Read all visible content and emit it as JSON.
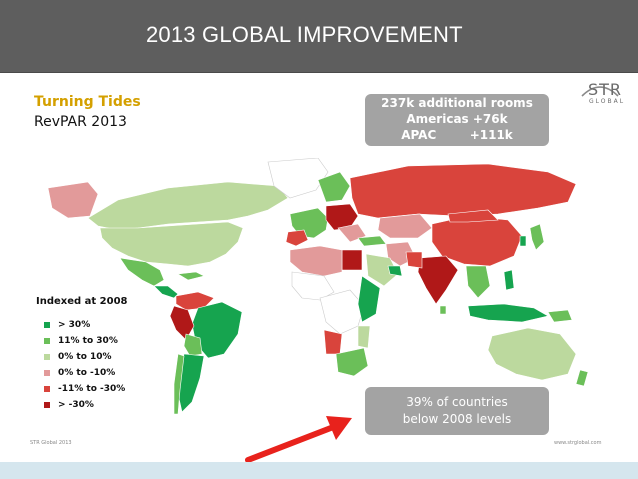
{
  "header": {
    "title": "2013 GLOBAL IMPROVEMENT"
  },
  "slide": {
    "subtitle": "Turning Tides",
    "metric": "RevPAR 2013",
    "stats": [
      "237k additional rooms",
      "Americas +76k",
      "APAC        +111k"
    ],
    "logo": {
      "text": "STR",
      "sub": "GLOBAL"
    },
    "legend": {
      "title": "Indexed at 2008",
      "items": [
        {
          "label": ">  30%",
          "color": "#16a44f"
        },
        {
          "label": "11% to 30%",
          "color": "#6bbf59"
        },
        {
          "label": "0% to 10%",
          "color": "#bcd99e"
        },
        {
          "label": "0% to -10%",
          "color": "#e29a9a"
        },
        {
          "label": "-11% to -30%",
          "color": "#d9443c"
        },
        {
          "label": ">  -30%",
          "color": "#b01818"
        }
      ]
    },
    "callout": [
      "39% of countries",
      "below 2008 levels"
    ],
    "footer_left": "STR Global 2013",
    "footer_right": "www.strglobal.com"
  },
  "colors": {
    "arrow": "#e8221c",
    "box": "#a3a3a3",
    "ocean": "#ffffff"
  }
}
